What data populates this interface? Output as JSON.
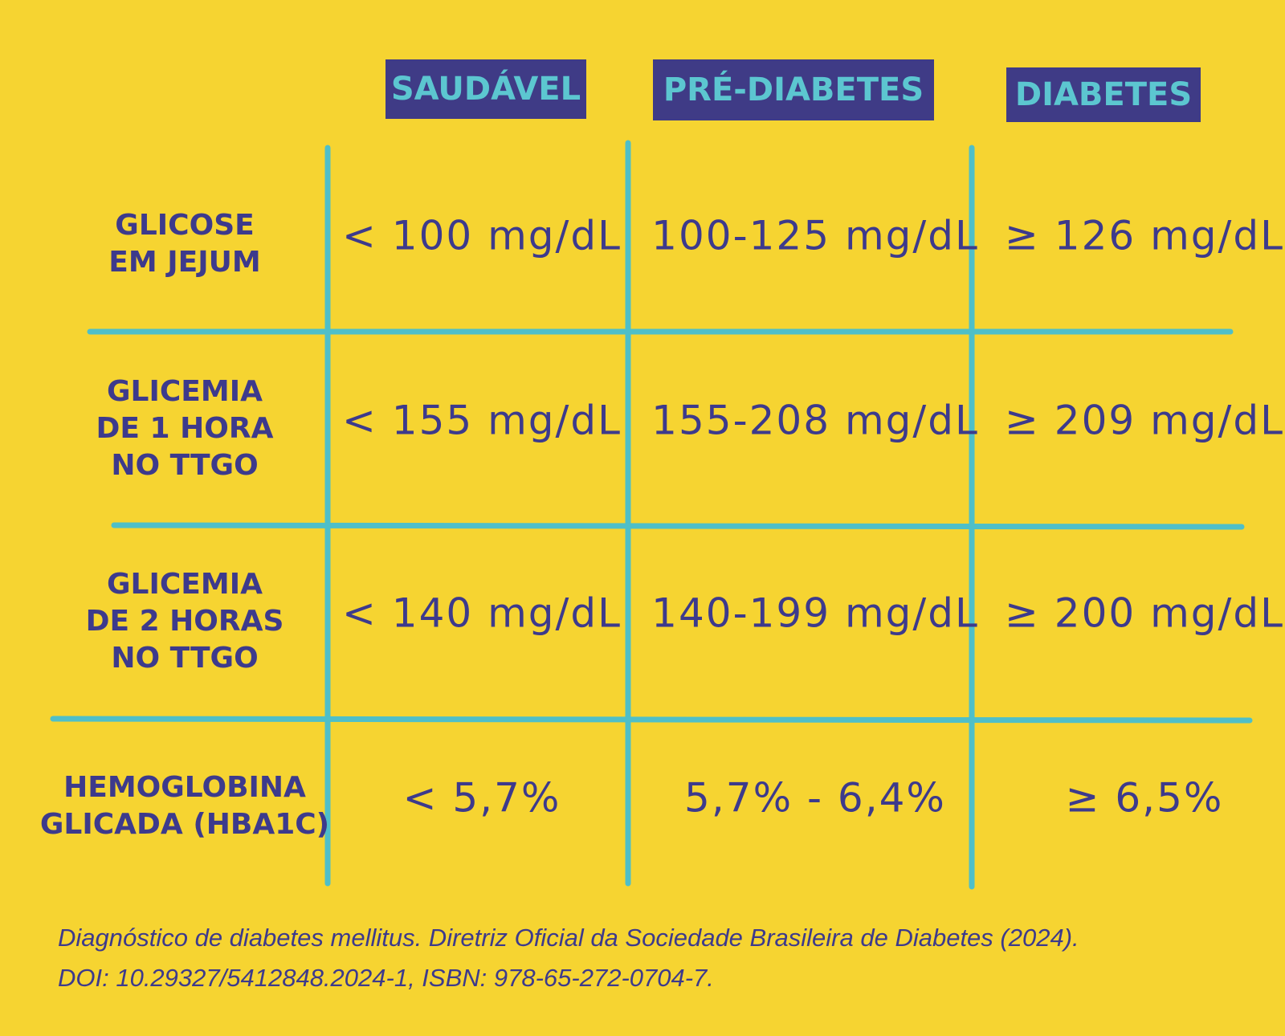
{
  "table": {
    "headers": [
      "SAUDÁVEL",
      "PRÉ-DIABETES",
      "DIABETES"
    ],
    "rows": [
      {
        "label": [
          "GLICOSE",
          "EM JEJUM"
        ],
        "cells": [
          "< 100 mg/dL",
          "100-125 mg/dL",
          "≥ 126 mg/dL"
        ]
      },
      {
        "label": [
          "GLICEMIA",
          "DE 1 HORA",
          "NO TTGO"
        ],
        "cells": [
          "< 155 mg/dL",
          "155-208 mg/dL",
          "≥ 209 mg/dL"
        ]
      },
      {
        "label": [
          "GLICEMIA",
          "DE 2 HORAS",
          "NO TTGO"
        ],
        "cells": [
          "< 140 mg/dL",
          "140-199 mg/dL",
          "≥ 200 mg/dL"
        ]
      },
      {
        "label": [
          "HEMOGLOBINA",
          "GLICADA (HBA1C)"
        ],
        "cells": [
          "< 5,7%",
          "5,7% - 6,4%",
          "≥ 6,5%"
        ]
      }
    ]
  },
  "footnote": [
    "Diagnóstico de diabetes mellitus. Diretriz Oficial da Sociedade Brasileira de Diabetes (2024).",
    "DOI: 10.29327/5412848.2024-1, ISBN: 978-65-272-0704-7."
  ]
}
